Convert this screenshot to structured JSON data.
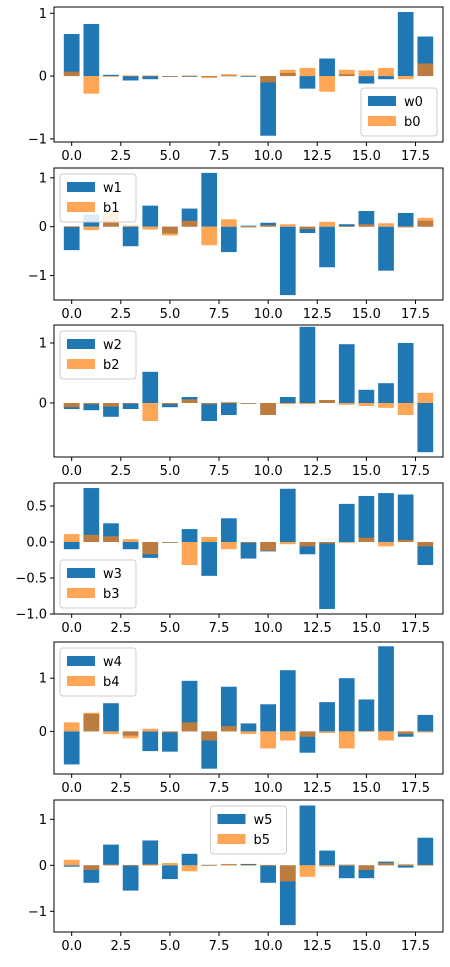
{
  "colors": {
    "w": "#1f77b4",
    "b": "#ff7f0e",
    "b_alpha": 0.7
  },
  "chart_data": [
    {
      "type": "bar",
      "x": [
        0,
        1,
        2,
        3,
        4,
        5,
        6,
        7,
        8,
        9,
        10,
        11,
        12,
        13,
        14,
        15,
        16,
        17,
        18
      ],
      "xticks": [
        "0.0",
        "2.5",
        "5.0",
        "7.5",
        "10.0",
        "12.5",
        "15.0",
        "17.5"
      ],
      "xlim": [
        -0.9,
        18.9
      ],
      "ylim": [
        -1.05,
        1.1
      ],
      "yticks": [
        -1,
        0,
        1
      ],
      "ytick_labels": [
        "−1",
        "0",
        "1"
      ],
      "legend_position": "lower-right",
      "series": [
        {
          "name": "w0",
          "values": [
            0.67,
            0.83,
            0.02,
            -0.07,
            -0.05,
            -0.01,
            0.0,
            -0.01,
            0.01,
            -0.01,
            -0.95,
            0.05,
            -0.2,
            0.28,
            0.03,
            -0.12,
            -0.05,
            1.02,
            0.63
          ]
        },
        {
          "name": "b0",
          "values": [
            0.07,
            -0.28,
            -0.01,
            0.01,
            0.01,
            0.0,
            0.01,
            -0.03,
            0.03,
            0.01,
            -0.1,
            0.1,
            0.13,
            -0.25,
            0.1,
            0.09,
            0.13,
            -0.05,
            0.2
          ]
        }
      ]
    },
    {
      "type": "bar",
      "x": [
        0,
        1,
        2,
        3,
        4,
        5,
        6,
        7,
        8,
        9,
        10,
        11,
        12,
        13,
        14,
        15,
        16,
        17,
        18
      ],
      "xticks": [
        "0.0",
        "2.5",
        "5.0",
        "7.5",
        "10.0",
        "12.5",
        "15.0",
        "17.5"
      ],
      "xlim": [
        -0.9,
        18.9
      ],
      "ylim": [
        -1.5,
        1.2
      ],
      "yticks": [
        -1,
        0,
        1
      ],
      "ytick_labels": [
        "−1",
        "0",
        "1"
      ],
      "legend_position": "upper-left",
      "series": [
        {
          "name": "w1",
          "values": [
            -0.48,
            0.25,
            0.08,
            -0.4,
            0.43,
            -0.14,
            0.37,
            1.1,
            -0.52,
            0.02,
            0.08,
            -1.4,
            -0.13,
            -0.83,
            0.05,
            0.32,
            -0.9,
            0.28,
            0.12
          ]
        },
        {
          "name": "b1",
          "values": [
            0.01,
            -0.07,
            0.28,
            0.02,
            -0.06,
            -0.18,
            0.12,
            -0.38,
            0.15,
            -0.02,
            0.03,
            0.05,
            -0.05,
            0.1,
            0.01,
            0.05,
            0.07,
            -0.02,
            0.18
          ]
        }
      ]
    },
    {
      "type": "bar",
      "x": [
        0,
        1,
        2,
        3,
        4,
        5,
        6,
        7,
        8,
        9,
        10,
        11,
        12,
        13,
        14,
        15,
        16,
        17,
        18
      ],
      "xticks": [
        "0.0",
        "2.5",
        "5.0",
        "7.5",
        "10.0",
        "12.5",
        "15.0",
        "17.5"
      ],
      "xlim": [
        -0.9,
        18.9
      ],
      "ylim": [
        -0.9,
        1.3
      ],
      "yticks": [
        0,
        1
      ],
      "ytick_labels": [
        "0",
        "1"
      ],
      "legend_position": "upper-left",
      "series": [
        {
          "name": "w2",
          "values": [
            -0.1,
            -0.12,
            -0.23,
            -0.1,
            0.52,
            -0.07,
            0.1,
            -0.3,
            -0.2,
            -0.01,
            -0.2,
            0.1,
            1.27,
            0.05,
            0.98,
            0.22,
            0.33,
            1.0,
            -0.82
          ]
        },
        {
          "name": "b2",
          "values": [
            -0.07,
            -0.02,
            -0.06,
            -0.01,
            -0.3,
            -0.02,
            0.06,
            -0.02,
            0.02,
            -0.01,
            -0.2,
            -0.02,
            -0.02,
            0.05,
            -0.03,
            -0.05,
            -0.08,
            -0.2,
            0.17
          ]
        }
      ]
    },
    {
      "type": "bar",
      "x": [
        0,
        1,
        2,
        3,
        4,
        5,
        6,
        7,
        8,
        9,
        10,
        11,
        12,
        13,
        14,
        15,
        16,
        17,
        18
      ],
      "xticks": [
        "0.0",
        "2.5",
        "5.0",
        "7.5",
        "10.0",
        "12.5",
        "15.0",
        "17.5"
      ],
      "xlim": [
        -0.9,
        18.9
      ],
      "ylim": [
        -1.0,
        0.82
      ],
      "yticks": [
        -1.0,
        -0.5,
        0.0,
        0.5
      ],
      "ytick_labels": [
        "−1.0",
        "−0.5",
        "0.0",
        "0.5"
      ],
      "legend_position": "lower-left",
      "series": [
        {
          "name": "w3",
          "values": [
            -0.1,
            0.75,
            0.26,
            -0.1,
            -0.22,
            0.0,
            0.18,
            -0.47,
            0.33,
            -0.23,
            -0.13,
            0.74,
            -0.17,
            -0.93,
            0.53,
            0.64,
            0.68,
            0.66,
            -0.32
          ]
        },
        {
          "name": "b3",
          "values": [
            0.11,
            0.1,
            0.08,
            0.04,
            -0.17,
            -0.01,
            -0.32,
            0.07,
            -0.1,
            -0.01,
            -0.12,
            -0.03,
            -0.06,
            -0.02,
            -0.01,
            0.06,
            -0.06,
            0.03,
            -0.06
          ]
        }
      ]
    },
    {
      "type": "bar",
      "x": [
        0,
        1,
        2,
        3,
        4,
        5,
        6,
        7,
        8,
        9,
        10,
        11,
        12,
        13,
        14,
        15,
        16,
        17,
        18
      ],
      "xticks": [
        "0.0",
        "2.5",
        "5.0",
        "7.5",
        "10.0",
        "12.5",
        "15.0",
        "17.5"
      ],
      "xlim": [
        -0.9,
        18.9
      ],
      "ylim": [
        -0.8,
        1.68
      ],
      "yticks": [
        0,
        1
      ],
      "ytick_labels": [
        "0",
        "1"
      ],
      "legend_position": "upper-left",
      "series": [
        {
          "name": "w4",
          "values": [
            -0.62,
            0.33,
            0.53,
            -0.08,
            -0.37,
            -0.38,
            0.95,
            -0.7,
            0.84,
            0.15,
            0.51,
            1.15,
            -0.4,
            0.55,
            1.0,
            0.6,
            1.6,
            -0.1,
            0.31
          ]
        },
        {
          "name": "b4",
          "values": [
            0.17,
            0.35,
            -0.05,
            -0.13,
            0.05,
            -0.02,
            0.17,
            -0.17,
            0.1,
            -0.05,
            -0.32,
            -0.17,
            -0.1,
            -0.03,
            -0.32,
            0.01,
            -0.17,
            -0.05,
            -0.02
          ]
        }
      ]
    },
    {
      "type": "bar",
      "x": [
        0,
        1,
        2,
        3,
        4,
        5,
        6,
        7,
        8,
        9,
        10,
        11,
        12,
        13,
        14,
        15,
        16,
        17,
        18
      ],
      "xticks": [
        "0.0",
        "2.5",
        "5.0",
        "7.5",
        "10.0",
        "12.5",
        "15.0",
        "17.5"
      ],
      "xlim": [
        -0.9,
        18.9
      ],
      "ylim": [
        -1.45,
        1.42
      ],
      "yticks": [
        -1,
        0,
        1
      ],
      "ytick_labels": [
        "−1",
        "0",
        "1"
      ],
      "legend_position": "upper-center",
      "series": [
        {
          "name": "w5",
          "values": [
            -0.03,
            -0.38,
            0.45,
            -0.55,
            0.54,
            -0.3,
            0.25,
            0.01,
            0.02,
            0.03,
            -0.38,
            -1.3,
            1.3,
            0.32,
            -0.28,
            -0.28,
            0.08,
            -0.05,
            0.6
          ]
        },
        {
          "name": "b5",
          "values": [
            0.12,
            -0.1,
            0.02,
            0.01,
            0.03,
            0.05,
            -0.13,
            0.01,
            0.03,
            0.01,
            0.01,
            -0.35,
            -0.25,
            -0.03,
            0.02,
            -0.1,
            0.05,
            0.03,
            0.01
          ]
        }
      ]
    }
  ]
}
